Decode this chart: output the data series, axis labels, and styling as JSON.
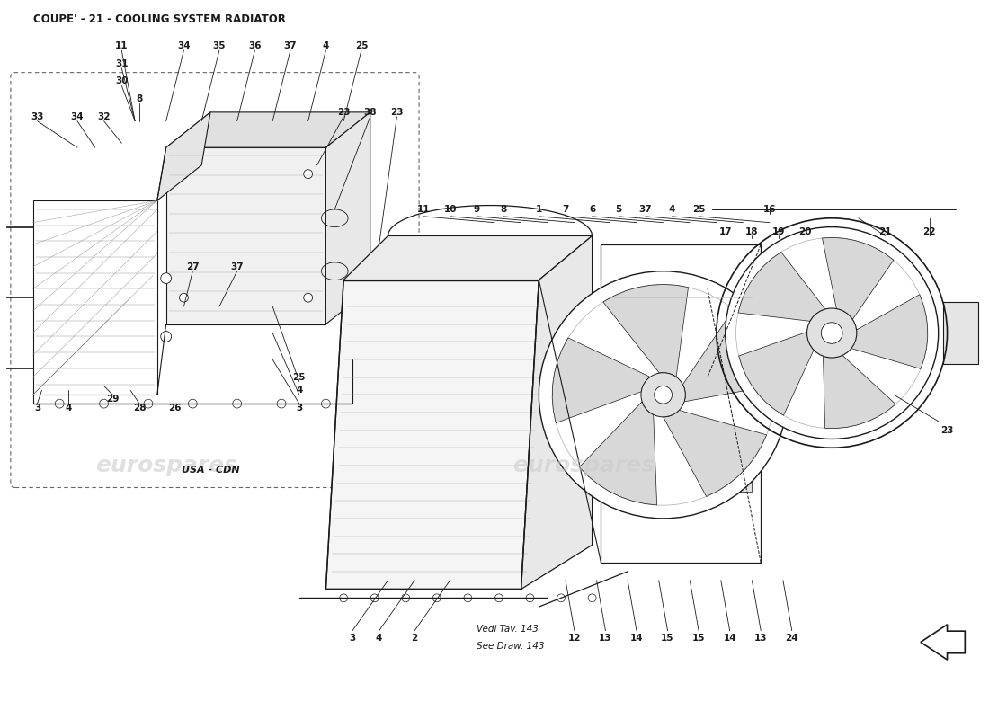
{
  "title": "COUPE' - 21 - COOLING SYSTEM RADIATOR",
  "background_color": "#ffffff",
  "line_color": "#1a1a1a",
  "text_color": "#1a1a1a",
  "watermark_text": "eurospares",
  "title_fontsize": 8.5,
  "label_fontsize": 7.5,
  "usa_cdn_label": "USA - CDN"
}
